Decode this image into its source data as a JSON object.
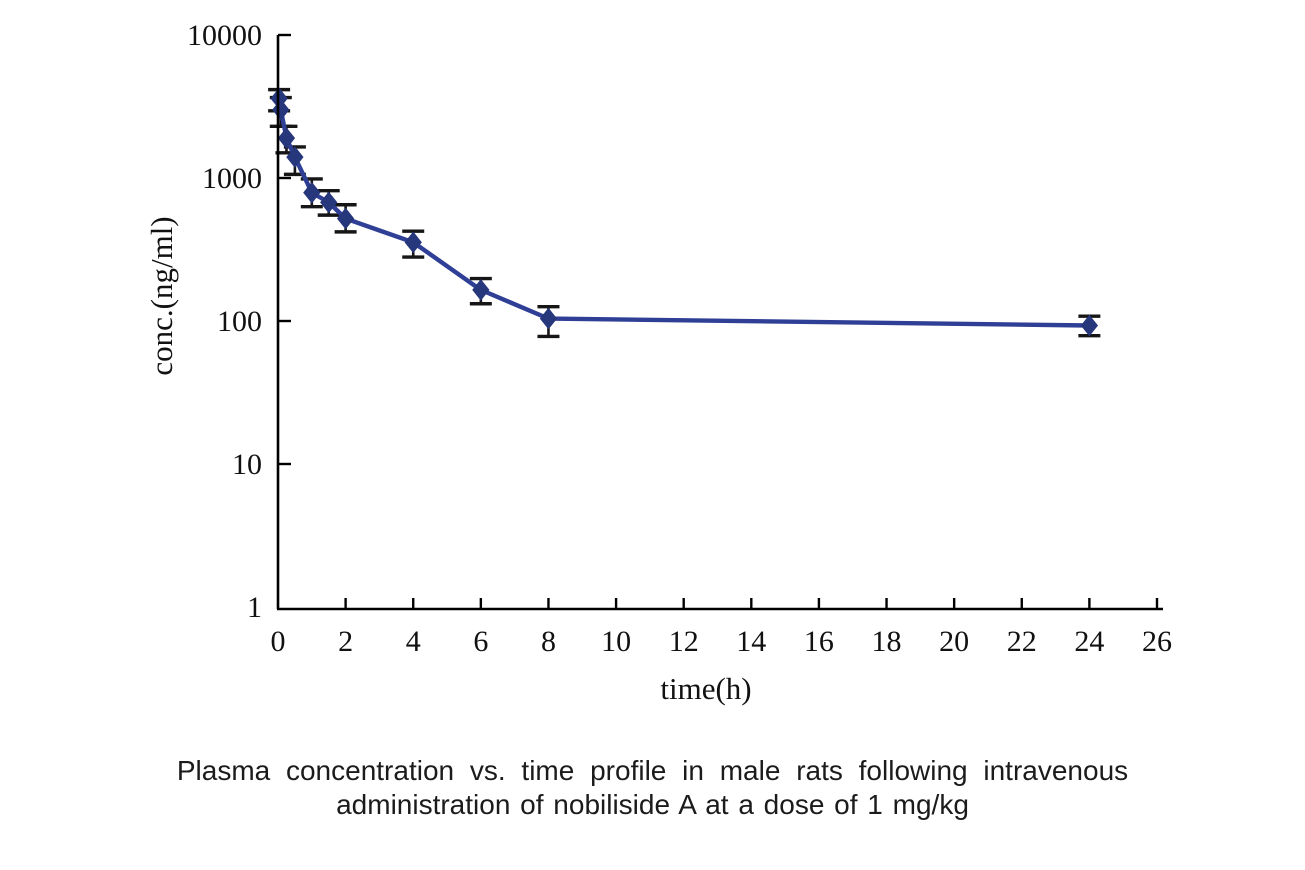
{
  "caption": {
    "line1": "Plasma concentration vs. time profile in male rats following intravenous",
    "line2": "administration of nobiliside A at a dose of 1 mg/kg"
  },
  "chart_data": {
    "type": "line",
    "title": "",
    "xlabel": "time(h)",
    "ylabel": "conc.(ng/ml)",
    "x_scale": "linear",
    "y_scale": "log",
    "xlim": [
      0,
      26
    ],
    "ylim": [
      1,
      10000
    ],
    "x_ticks": [
      0,
      2,
      4,
      6,
      8,
      10,
      12,
      14,
      16,
      18,
      20,
      22,
      24,
      26
    ],
    "y_ticks": [
      1,
      10,
      100,
      1000,
      10000
    ],
    "grid": false,
    "legend": false,
    "marker": "diamond",
    "error_bars": true,
    "colors": {
      "line": "#2f3f96",
      "marker": "#27377c",
      "error_bar": "#161616",
      "axis": "#000000"
    },
    "series": [
      {
        "name": "nobiliside A 1 mg/kg IV",
        "points": [
          {
            "t": 0.033,
            "conc": 3600,
            "err_lo": 2950,
            "err_hi": 4150
          },
          {
            "t": 0.083,
            "conc": 3000,
            "err_lo": 2300,
            "err_hi": 3650
          },
          {
            "t": 0.25,
            "conc": 1900,
            "err_lo": 1500,
            "err_hi": 2300
          },
          {
            "t": 0.5,
            "conc": 1400,
            "err_lo": 1060,
            "err_hi": 1650
          },
          {
            "t": 1,
            "conc": 790,
            "err_lo": 630,
            "err_hi": 985
          },
          {
            "t": 1.5,
            "conc": 675,
            "err_lo": 550,
            "err_hi": 815
          },
          {
            "t": 2,
            "conc": 520,
            "err_lo": 420,
            "err_hi": 650
          },
          {
            "t": 4,
            "conc": 355,
            "err_lo": 280,
            "err_hi": 425
          },
          {
            "t": 6,
            "conc": 165,
            "err_lo": 132,
            "err_hi": 198
          },
          {
            "t": 8,
            "conc": 104,
            "err_lo": 78,
            "err_hi": 126
          },
          {
            "t": 24,
            "conc": 93,
            "err_lo": 79,
            "err_hi": 108
          }
        ]
      }
    ]
  }
}
